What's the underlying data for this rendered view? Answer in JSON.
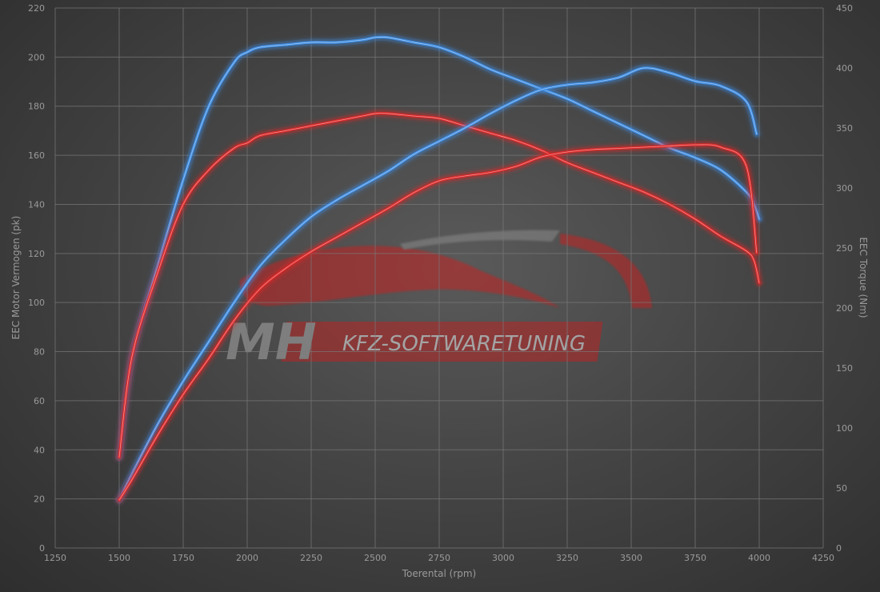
{
  "chart_data": {
    "type": "line",
    "title": "",
    "xlabel": "Toerental (rpm)",
    "ylabel": "EEC Motor Vermogen (pk)",
    "y2label": "EEC Torque (Nm)",
    "xlim": [
      1250,
      4250
    ],
    "ylim": [
      0,
      220
    ],
    "y2lim": [
      0,
      450
    ],
    "x_ticks": [
      1250,
      1500,
      1750,
      2000,
      2250,
      2500,
      2750,
      3000,
      3250,
      3500,
      3750,
      4000,
      4250
    ],
    "y_ticks": [
      0,
      20,
      40,
      60,
      80,
      100,
      120,
      140,
      160,
      180,
      200,
      220
    ],
    "y2_ticks": [
      0,
      50,
      100,
      150,
      200,
      250,
      300,
      350,
      400,
      450
    ],
    "grid": true,
    "series": [
      {
        "axis": "left",
        "color": "#3f8fe8",
        "x": [
          1500,
          1550,
          1650,
          1750,
          1850,
          1950,
          2000,
          2050,
          2150,
          2250,
          2350,
          2450,
          2500,
          2550,
          2650,
          2750,
          2850,
          2950,
          3050,
          3150,
          3250,
          3350,
          3450,
          3550,
          3650,
          3750,
          3850,
          3950,
          3980,
          4000
        ],
        "values": [
          37,
          78,
          115,
          150,
          180,
          198,
          202,
          204,
          205,
          206,
          206,
          207,
          208,
          208,
          206,
          204,
          200,
          195,
          191,
          187,
          183,
          178,
          173,
          168,
          163,
          159,
          154,
          145,
          140,
          134
        ]
      },
      {
        "axis": "left",
        "color": "#e02828",
        "x": [
          1500,
          1550,
          1650,
          1750,
          1850,
          1950,
          2000,
          2050,
          2150,
          2250,
          2350,
          2450,
          2500,
          2550,
          2650,
          2750,
          2850,
          2950,
          3050,
          3150,
          3250,
          3350,
          3450,
          3550,
          3650,
          3750,
          3850,
          3950,
          3980,
          4000
        ],
        "values": [
          37,
          78,
          112,
          140,
          154,
          163,
          165,
          168,
          170,
          172,
          174,
          176,
          177,
          177,
          176,
          175,
          172,
          169,
          166,
          162,
          157,
          153,
          149,
          145,
          140,
          134,
          127,
          121,
          117,
          108
        ]
      },
      {
        "axis": "right",
        "color": "#3f8fe8",
        "x": [
          1500,
          1550,
          1650,
          1750,
          1850,
          1950,
          2050,
          2150,
          2250,
          2350,
          2450,
          2550,
          2650,
          2750,
          2850,
          2950,
          3050,
          3150,
          3250,
          3350,
          3450,
          3550,
          3650,
          3750,
          3850,
          3950,
          3990
        ],
        "values": [
          40,
          62,
          103,
          139,
          172,
          205,
          235,
          257,
          276,
          290,
          302,
          314,
          328,
          339,
          350,
          362,
          373,
          382,
          386,
          388,
          392,
          400,
          396,
          389,
          385,
          372,
          345
        ]
      },
      {
        "axis": "right",
        "color": "#e02828",
        "x": [
          1500,
          1550,
          1650,
          1750,
          1850,
          1950,
          2050,
          2150,
          2250,
          2350,
          2450,
          2550,
          2650,
          2750,
          2850,
          2950,
          3050,
          3150,
          3250,
          3350,
          3450,
          3550,
          3650,
          3750,
          3850,
          3950,
          3990
        ],
        "values": [
          40,
          57,
          94,
          128,
          158,
          190,
          216,
          233,
          247,
          259,
          271,
          283,
          296,
          306,
          310,
          313,
          318,
          326,
          330,
          332,
          333,
          334,
          335,
          336,
          334,
          318,
          246
        ]
      }
    ]
  },
  "watermark": {
    "logo_text": "MH",
    "banner_text": "KFZ-SOFTWARETUNING"
  }
}
